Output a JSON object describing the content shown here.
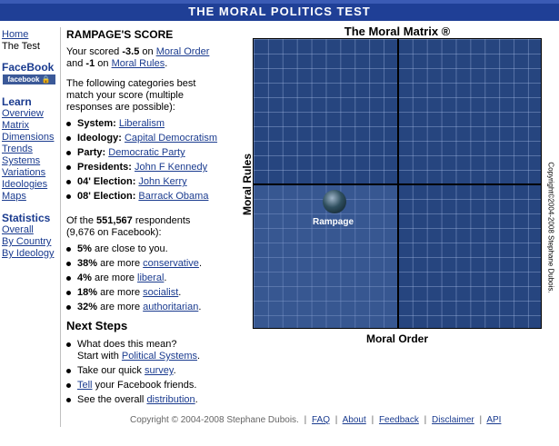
{
  "banner": {
    "title": "THE MORAL POLITICS TEST"
  },
  "nav": {
    "top_links": [
      "Home",
      "The Test"
    ],
    "facebook_head": "FaceBook",
    "facebook_badge": "facebook 🔒",
    "learn_head": "Learn",
    "learn_links": [
      "Overview",
      "Matrix",
      "Dimensions",
      "Trends",
      "Systems",
      "Variations",
      "Ideologies",
      "Maps"
    ],
    "stats_head": "Statistics",
    "stats_links": [
      "Overall",
      "By Country",
      "By Ideology"
    ]
  },
  "score": {
    "heading": "RAMPAGE'S SCORE",
    "line1_prefix": "Your scored ",
    "order_value": "-3.5",
    "line1_mid": " on ",
    "order_link": "Moral Order",
    "line2_prefix": "and ",
    "rules_value": "-1",
    "line2_mid": " on ",
    "rules_link": "Moral Rules",
    "line2_suffix": ".",
    "categories_intro": [
      "The following categories best",
      "match your score (multiple",
      "responses are possible):"
    ],
    "categories": [
      {
        "label": "System:",
        "value": "Liberalism"
      },
      {
        "label": "Ideology:",
        "value": "Capital Democratism"
      },
      {
        "label": "Party:",
        "value": "Democratic Party"
      },
      {
        "label": "Presidents:",
        "value": "John F Kennedy"
      },
      {
        "label": "04' Election:",
        "value": "John Kerry"
      },
      {
        "label": "08' Election:",
        "value": "Barrack Obama"
      }
    ],
    "respondents_prefix": "Of the ",
    "respondents_total": "551,567",
    "respondents_suffix": " respondents",
    "respondents_line2": "(9,676 on Facebook):",
    "stats": [
      {
        "pct": "5%",
        "text": " are close to you.",
        "link": ""
      },
      {
        "pct": "38%",
        "text": " are more ",
        "link": "conservative"
      },
      {
        "pct": "4%",
        "text": " are more ",
        "link": "liberal"
      },
      {
        "pct": "18%",
        "text": " are more ",
        "link": "socialist"
      },
      {
        "pct": "32%",
        "text": " are more ",
        "link": "authoritarian"
      }
    ]
  },
  "next_steps": {
    "heading": "Next Steps",
    "q_text": "What does this mean?",
    "q_line2_prefix": "Start with ",
    "q_link": "Political Systems",
    "survey_prefix": "Take our quick ",
    "survey_link": "survey",
    "tell_link": "Tell",
    "tell_suffix": " your Facebook friends.",
    "dist_prefix": "See the overall ",
    "dist_link": "distribution"
  },
  "chart_data": {
    "type": "scatter",
    "title": "The Moral Matrix ®",
    "xlabel": "Moral Order",
    "ylabel": "Moral Rules",
    "points": [
      {
        "label": "Rampage",
        "x": -3.5,
        "y": -1
      }
    ],
    "grid": true,
    "copyright": "Copyright©2004-2008 Stephane Dubois."
  },
  "footer": {
    "copyright": "Copyright © 2004-2008 Stephane Dubois.",
    "links": [
      "FAQ",
      "About",
      "Feedback",
      "Disclaimer",
      "API"
    ],
    "separator": "|"
  }
}
